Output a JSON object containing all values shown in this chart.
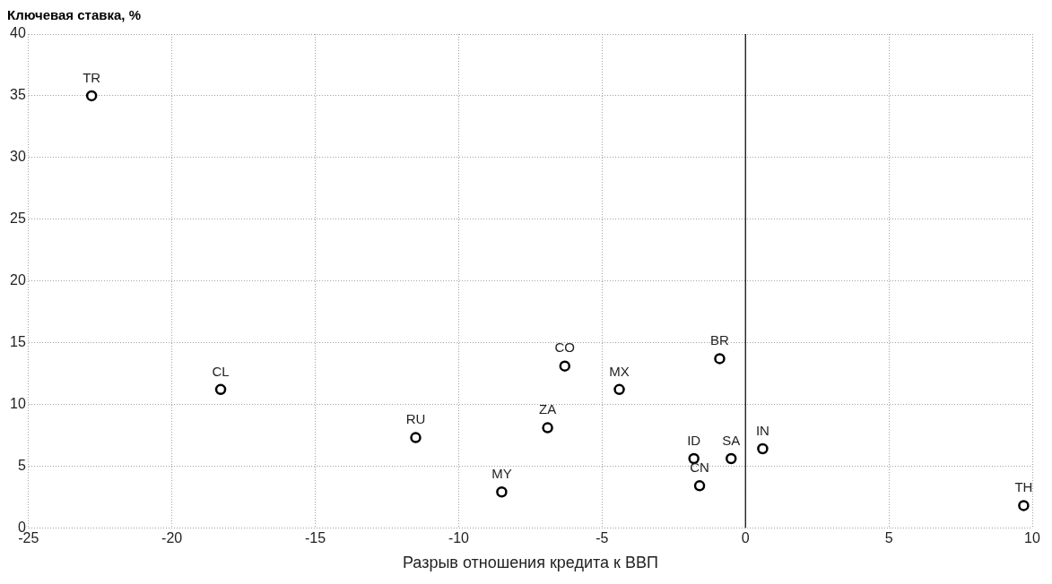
{
  "chart_data": {
    "type": "scatter",
    "ylabel": "Ключевая ставка, %",
    "xlabel": "Разрыв отношения кредита к ВВП",
    "series": [
      {
        "name": "TR",
        "color": "#000000",
        "x": [
          -22.8
        ],
        "values": [
          35
        ]
      },
      {
        "name": "CL",
        "color": "#000000",
        "x": [
          -18.3
        ],
        "values": [
          11.2
        ]
      },
      {
        "name": "RU",
        "color": "#000000",
        "x": [
          -11.5
        ],
        "values": [
          7.3
        ]
      },
      {
        "name": "MY",
        "color": "#000000",
        "x": [
          -8.5
        ],
        "values": [
          2.9
        ]
      },
      {
        "name": "ZA",
        "color": "#000000",
        "x": [
          -6.9
        ],
        "values": [
          8.1
        ]
      },
      {
        "name": "CO",
        "color": "#000000",
        "x": [
          -6.3
        ],
        "values": [
          13.1
        ]
      },
      {
        "name": "MX",
        "color": "#000000",
        "x": [
          -4.4
        ],
        "values": [
          11.2
        ]
      },
      {
        "name": "BR",
        "color": "#000000",
        "x": [
          -0.9
        ],
        "values": [
          13.7
        ]
      },
      {
        "name": "ID",
        "color": "#000000",
        "x": [
          -1.8
        ],
        "values": [
          5.6
        ]
      },
      {
        "name": "CN",
        "color": "#000000",
        "x": [
          -1.6
        ],
        "values": [
          3.4
        ]
      },
      {
        "name": "SA",
        "color": "#000000",
        "x": [
          -0.5
        ],
        "values": [
          5.6
        ]
      },
      {
        "name": "IN",
        "color": "#000000",
        "x": [
          0.6
        ],
        "values": [
          6.4
        ]
      },
      {
        "name": "TH",
        "color": "#000000",
        "x": [
          9.7
        ],
        "values": [
          1.8
        ]
      }
    ],
    "xlim": [
      -25,
      10
    ],
    "xticks": [
      -25,
      -20,
      -15,
      -10,
      -5,
      0,
      5,
      10
    ],
    "ylim": [
      0,
      40
    ],
    "yticks": [
      0,
      5,
      10,
      15,
      20,
      25,
      30,
      35,
      40
    ],
    "ref_lines": [
      {
        "axis": "x",
        "value": 0,
        "color": "#000000"
      }
    ],
    "grid": true,
    "marker": "circle",
    "legend": false
  }
}
